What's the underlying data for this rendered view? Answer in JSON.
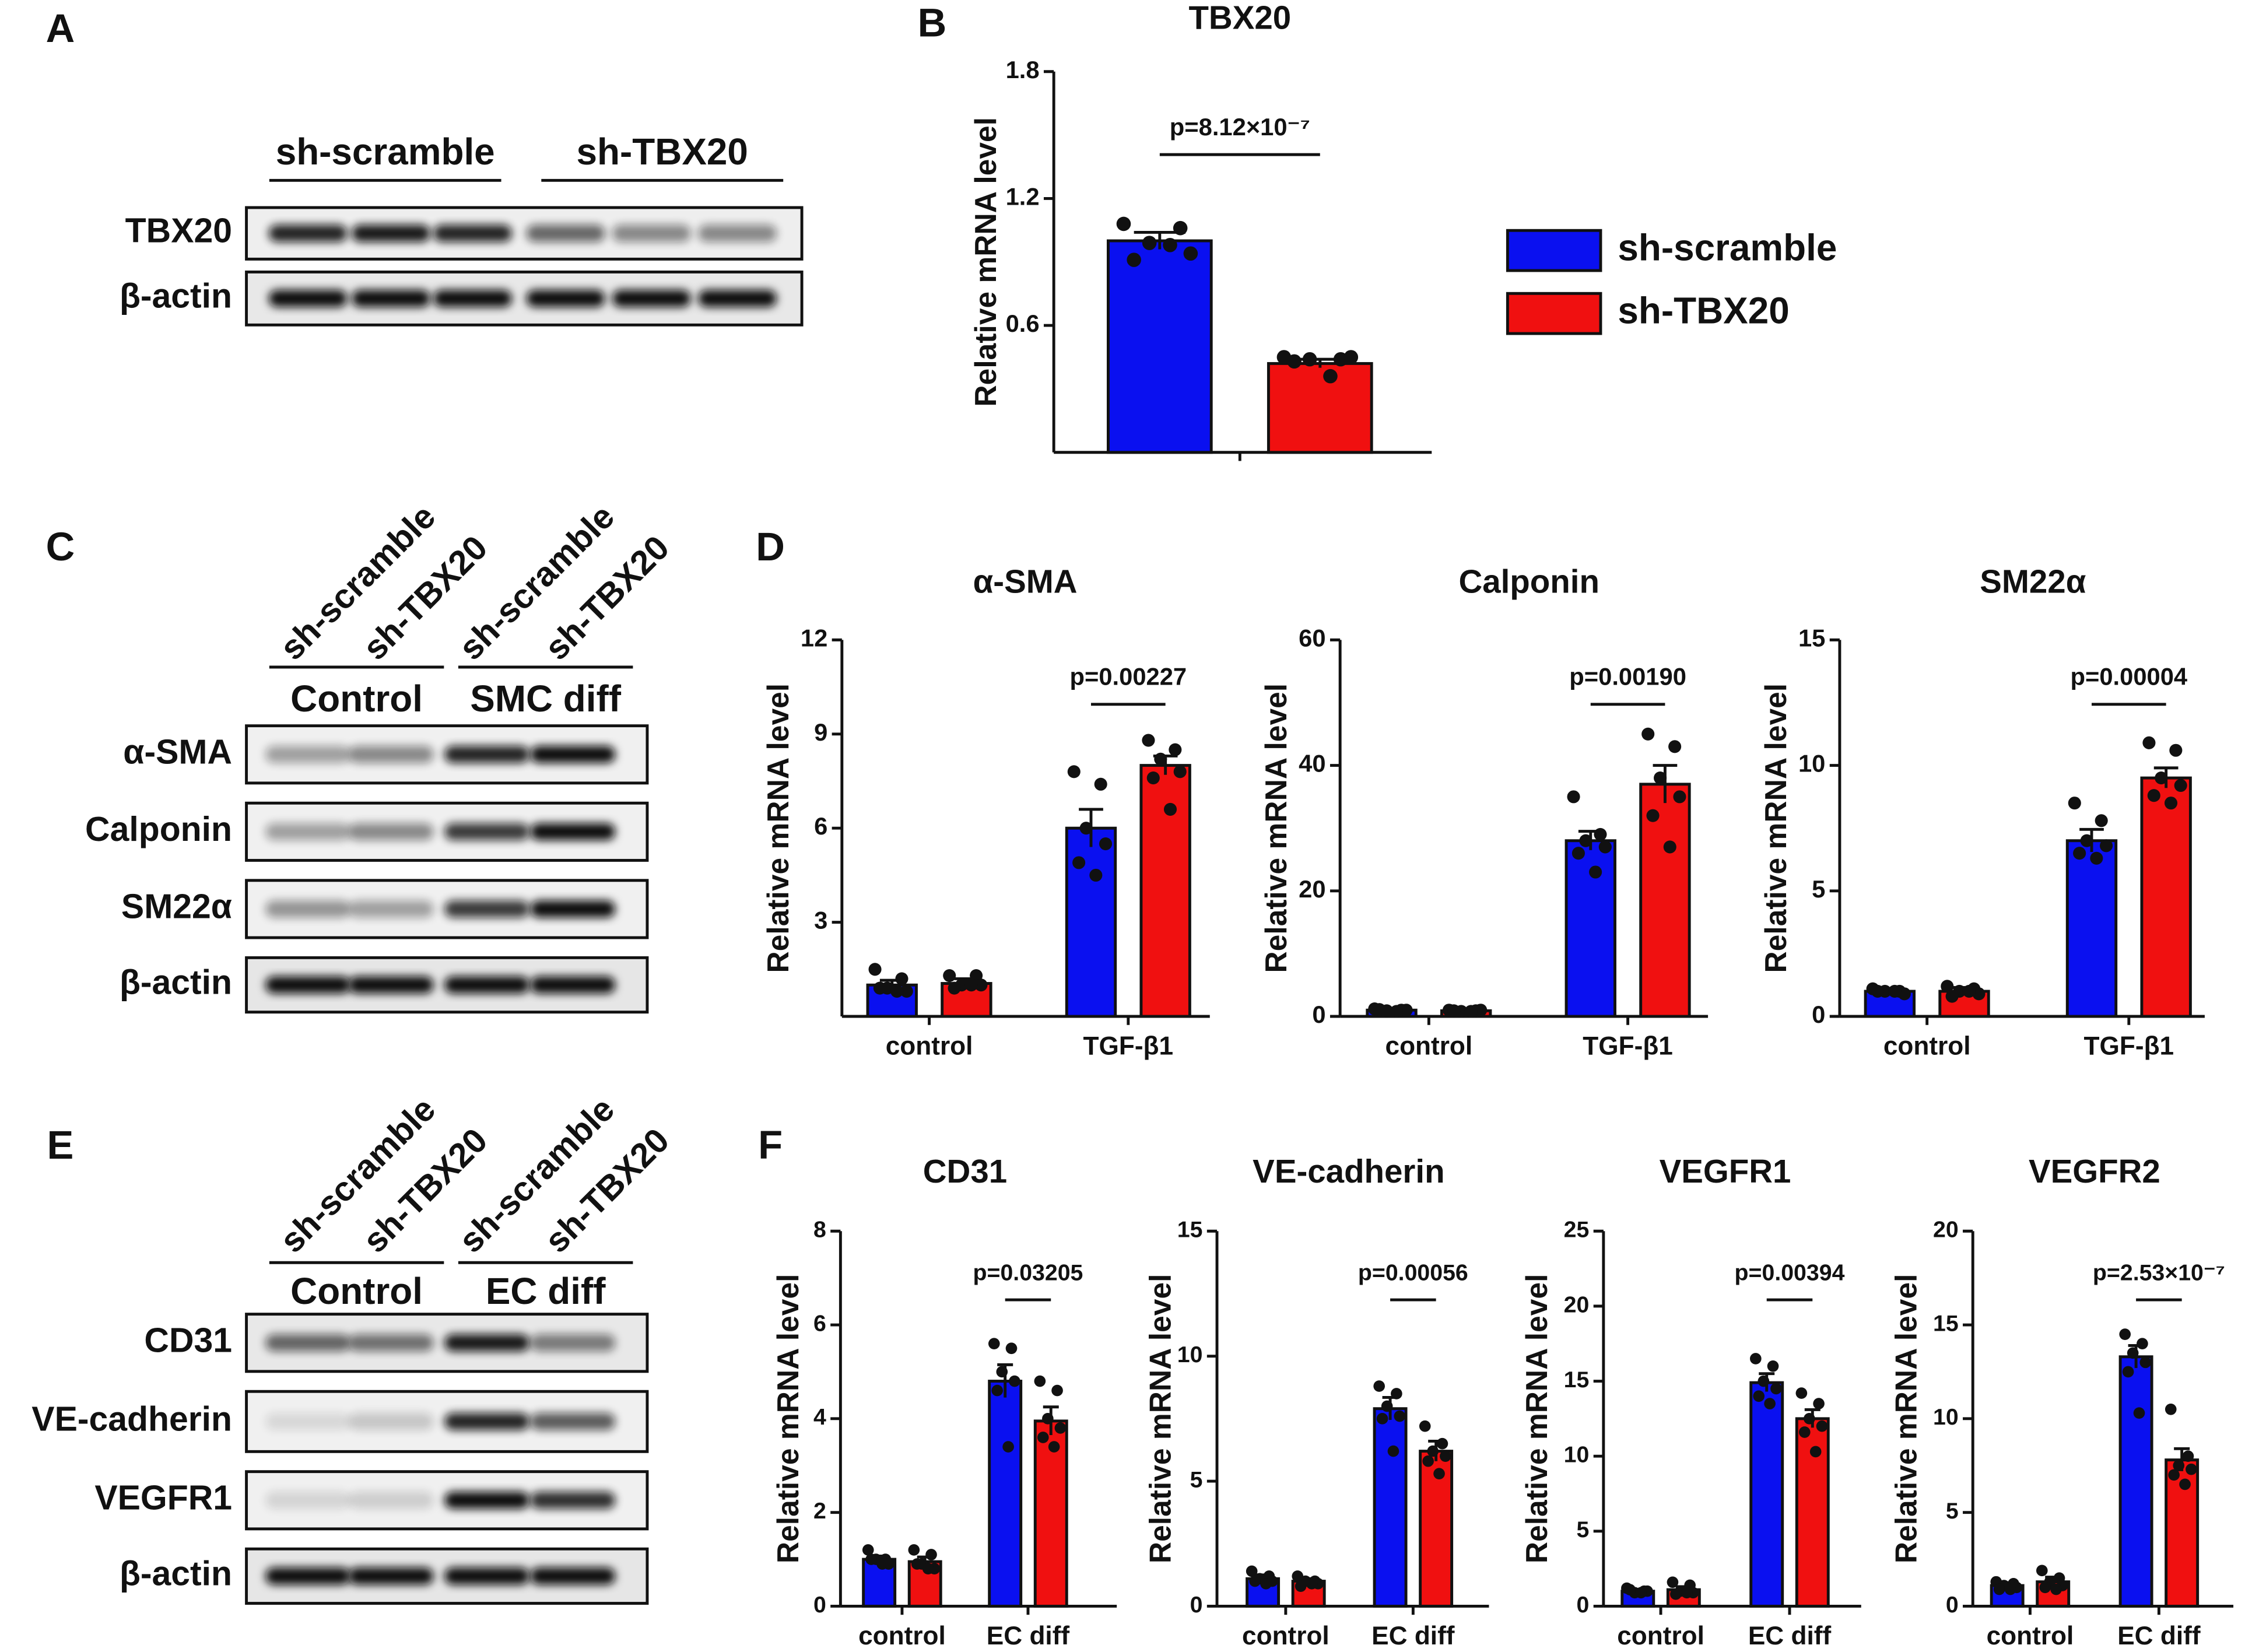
{
  "panel_letters": [
    "A",
    "B",
    "C",
    "D",
    "E",
    "F"
  ],
  "blots": [
    {
      "groups": [
        "sh-scramble",
        "sh-TBX20"
      ],
      "rows": [
        "TBX20",
        "β-actin"
      ]
    },
    {
      "lanes": [
        "sh-scramble",
        "sh-TBX20",
        "sh-scramble",
        "sh-TBX20"
      ],
      "groups": [
        "Control",
        "SMC diff"
      ],
      "rows": [
        "α-SMA",
        "Calponin",
        "SM22α",
        "β-actin"
      ]
    },
    {
      "lanes": [
        "sh-scramble",
        "sh-TBX20",
        "sh-scramble",
        "sh-TBX20"
      ],
      "groups": [
        "Control",
        "EC diff"
      ],
      "rows": [
        "CD31",
        "VE-cadherin",
        "VEGFR1",
        "β-actin"
      ]
    }
  ],
  "chart_data": [
    {
      "type": "bar",
      "title": "TBX20",
      "y_label": "Relative mRNA level",
      "categories": [
        null
      ],
      "ylim": [
        0,
        1.8
      ],
      "yticks": [
        0.6,
        1.2,
        1.8
      ],
      "annotation": "p=8.12×10⁻⁷",
      "legend": "right",
      "series": [
        {
          "name": "sh-scramble",
          "color": "#0a10f0",
          "values": [
            1.0
          ],
          "errors": [
            0.04
          ],
          "points": [
            [
              1.08,
              1.06,
              0.99,
              0.94,
              0.91,
              0.98
            ]
          ]
        },
        {
          "name": "sh-TBX20",
          "color": "#f01010",
          "values": [
            0.42
          ],
          "errors": [
            0.02
          ],
          "points": [
            [
              0.45,
              0.44,
              0.44,
              0.45,
              0.43,
              0.36
            ]
          ]
        }
      ]
    },
    {
      "type": "bar",
      "title": "α-SMA",
      "y_label": "Relative mRNA level",
      "categories": [
        "control",
        "TGF-β1"
      ],
      "ylim": [
        0,
        12
      ],
      "yticks": [
        3,
        6,
        9,
        12
      ],
      "annotation": "p=0.00227",
      "series": [
        {
          "color": "#0a10f0",
          "values": [
            1.0,
            6.0
          ],
          "errors": [
            0.15,
            0.6
          ],
          "points": [
            [
              1.5,
              1.2,
              0.9,
              0.8,
              0.9,
              0.8
            ],
            [
              7.8,
              7.4,
              6.0,
              5.5,
              4.9,
              4.5
            ]
          ]
        },
        {
          "color": "#f01010",
          "values": [
            1.05,
            8.0
          ],
          "errors": [
            0.15,
            0.3
          ],
          "points": [
            [
              1.3,
              1.3,
              1.0,
              1.0,
              0.9,
              1.0
            ],
            [
              8.8,
              8.5,
              8.2,
              7.8,
              7.6,
              6.6
            ]
          ]
        }
      ]
    },
    {
      "type": "bar",
      "title": "Calponin",
      "y_label": "Relative mRNA level",
      "categories": [
        "control",
        "TGF-β1"
      ],
      "ylim": [
        0,
        60
      ],
      "yticks": [
        0,
        20,
        40,
        60
      ],
      "annotation": "p=0.00190",
      "series": [
        {
          "color": "#0a10f0",
          "values": [
            1.0,
            28
          ],
          "errors": [
            0.2,
            1.5
          ],
          "points": [
            [
              1.2,
              1.0,
              0.9,
              1.0,
              1.1,
              0.8
            ],
            [
              35,
              29,
              28,
              27,
              26,
              23
            ]
          ]
        },
        {
          "color": "#f01010",
          "values": [
            0.9,
            37
          ],
          "errors": [
            0.2,
            3
          ],
          "points": [
            [
              1.0,
              0.9,
              0.8,
              1.0,
              0.9,
              0.8
            ],
            [
              45,
              43,
              38,
              35,
              32,
              27
            ]
          ]
        }
      ]
    },
    {
      "type": "bar",
      "title": "SM22α",
      "y_label": "Relative mRNA level",
      "categories": [
        "control",
        "TGF-β1"
      ],
      "ylim": [
        0,
        15
      ],
      "yticks": [
        0,
        5,
        10,
        15
      ],
      "annotation": "p=0.00004",
      "series": [
        {
          "color": "#0a10f0",
          "values": [
            1.0,
            7.0
          ],
          "errors": [
            0.1,
            0.45
          ],
          "points": [
            [
              1.1,
              1.0,
              1.0,
              0.9,
              1.0,
              1.0
            ],
            [
              8.5,
              7.8,
              7.0,
              6.8,
              6.5,
              6.3
            ]
          ]
        },
        {
          "color": "#f01010",
          "values": [
            1.0,
            9.5
          ],
          "errors": [
            0.15,
            0.4
          ],
          "points": [
            [
              1.2,
              1.1,
              1.0,
              0.9,
              0.8,
              1.0
            ],
            [
              10.9,
              10.6,
              9.5,
              9.2,
              8.8,
              8.5
            ]
          ]
        }
      ]
    },
    {
      "type": "bar",
      "title": "CD31",
      "y_label": "Relative mRNA level",
      "categories": [
        "control",
        "EC diff"
      ],
      "ylim": [
        0,
        8
      ],
      "yticks": [
        0,
        2,
        4,
        6,
        8
      ],
      "annotation": "p=0.03205",
      "series": [
        {
          "color": "#0a10f0",
          "values": [
            1.0,
            4.8
          ],
          "errors": [
            0.07,
            0.35
          ],
          "points": [
            [
              1.2,
              1.0,
              1.0,
              0.9,
              1.0,
              0.9
            ],
            [
              5.6,
              5.5,
              5.0,
              4.8,
              4.6,
              3.4
            ]
          ]
        },
        {
          "color": "#f01010",
          "values": [
            0.95,
            3.95
          ],
          "errors": [
            0.1,
            0.3
          ],
          "points": [
            [
              1.2,
              1.1,
              0.9,
              0.8,
              0.9,
              0.8
            ],
            [
              4.8,
              4.6,
              4.0,
              3.8,
              3.6,
              3.4
            ]
          ]
        }
      ]
    },
    {
      "type": "bar",
      "title": "VE-cadherin",
      "y_label": "Relative mRNA level",
      "categories": [
        "control",
        "EC diff"
      ],
      "ylim": [
        0,
        15
      ],
      "yticks": [
        0,
        5,
        10,
        15
      ],
      "annotation": "p=0.00056",
      "series": [
        {
          "color": "#0a10f0",
          "values": [
            1.1,
            7.9
          ],
          "errors": [
            0.15,
            0.45
          ],
          "points": [
            [
              1.4,
              1.2,
              1.1,
              1.0,
              1.0,
              0.9
            ],
            [
              8.8,
              8.5,
              8.0,
              7.6,
              7.5,
              6.2
            ]
          ]
        },
        {
          "color": "#f01010",
          "values": [
            1.0,
            6.2
          ],
          "errors": [
            0.1,
            0.4
          ],
          "points": [
            [
              1.2,
              1.0,
              1.0,
              0.9,
              0.8,
              0.9
            ],
            [
              7.2,
              6.5,
              6.2,
              6.0,
              5.8,
              5.3
            ]
          ]
        }
      ]
    },
    {
      "type": "bar",
      "title": "VEGFR1",
      "y_label": "Relative mRNA level",
      "categories": [
        "control",
        "EC diff"
      ],
      "ylim": [
        0,
        25
      ],
      "yticks": [
        0,
        5,
        10,
        15,
        20,
        25
      ],
      "annotation": "p=0.00394",
      "series": [
        {
          "color": "#0a10f0",
          "values": [
            1.0,
            14.9
          ],
          "errors": [
            0.1,
            0.6
          ],
          "points": [
            [
              1.2,
              1.0,
              0.9,
              1.0,
              1.1,
              0.9
            ],
            [
              16.5,
              16,
              15,
              14.5,
              14,
              13.5
            ]
          ]
        },
        {
          "color": "#f01010",
          "values": [
            1.1,
            12.5
          ],
          "errors": [
            0.2,
            0.6
          ],
          "points": [
            [
              1.6,
              1.4,
              1.0,
              0.9,
              0.8,
              0.9
            ],
            [
              14.2,
              13.5,
              12.5,
              12.0,
              11.6,
              10.3
            ]
          ]
        }
      ]
    },
    {
      "type": "bar",
      "title": "VEGFR2",
      "y_label": "Relative mRNA level",
      "categories": [
        "control",
        "EC diff"
      ],
      "ylim": [
        0,
        20
      ],
      "yticks": [
        0,
        5,
        10,
        15,
        20
      ],
      "annotation": "p=2.53×10⁻⁷",
      "series": [
        {
          "color": "#0a10f0",
          "values": [
            1.1,
            13.3
          ],
          "errors": [
            0.15,
            0.6
          ],
          "points": [
            [
              1.3,
              1.2,
              1.1,
              1.0,
              0.9,
              0.9
            ],
            [
              14.5,
              14,
              13.5,
              13,
              12.5,
              10.3
            ]
          ]
        },
        {
          "color": "#f01010",
          "values": [
            1.3,
            7.8
          ],
          "errors": [
            0.25,
            0.6
          ],
          "points": [
            [
              1.9,
              1.5,
              1.3,
              1.1,
              1.0,
              0.9
            ],
            [
              10.5,
              8.0,
              7.5,
              7.3,
              7.0,
              6.5
            ]
          ]
        }
      ]
    }
  ]
}
